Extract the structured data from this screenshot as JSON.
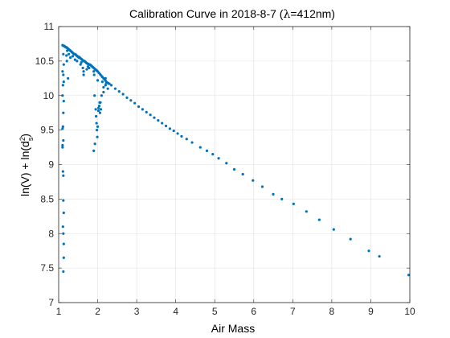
{
  "chart_data": {
    "type": "scatter",
    "title": "Calibration Curve in 2018-8-7 (λ=412nm)",
    "title_parts": {
      "before": "Calibration Curve in 2018-8-7 (",
      "symbol": "λ",
      "after": "=412nm)"
    },
    "xlabel": "Air Mass",
    "ylabel": "ln(V) + ln(d_s^2)",
    "ylabel_parts": {
      "main": "ln(V) + ln(d",
      "superscript": "2",
      "subscript": "s",
      "close": ")"
    },
    "xlim": [
      1,
      10
    ],
    "ylim": [
      7,
      11
    ],
    "xticks": [
      1,
      2,
      3,
      4,
      5,
      6,
      7,
      8,
      9,
      10
    ],
    "yticks": [
      7,
      7.5,
      8,
      8.5,
      9,
      9.5,
      10,
      10.5,
      11
    ],
    "ytick_labels": [
      "7",
      "7.5",
      "8",
      "8.5",
      "9",
      "9.5",
      "10",
      "10.5",
      "11"
    ],
    "grid": true,
    "marker_color": "#0072bd",
    "series": [
      {
        "x": [
          1.1,
          1.12,
          1.14,
          1.16,
          1.18,
          1.2,
          1.22,
          1.24,
          1.26,
          1.28,
          1.3,
          1.32,
          1.34,
          1.36,
          1.38,
          1.4,
          1.42,
          1.44,
          1.46,
          1.48,
          1.5,
          1.52,
          1.54,
          1.56,
          1.58,
          1.6,
          1.62,
          1.64,
          1.66,
          1.68,
          1.7,
          1.72,
          1.74,
          1.76,
          1.78,
          1.8,
          1.82,
          1.84,
          1.86,
          1.88,
          1.9,
          1.92,
          1.94,
          1.96,
          1.98,
          2.0,
          2.03,
          2.06,
          2.09,
          2.12,
          2.15,
          2.18,
          2.21,
          2.24,
          2.27,
          2.3,
          2.35,
          2.45,
          2.55,
          2.65,
          2.75,
          2.85,
          2.95,
          3.05,
          3.15,
          3.25,
          3.35,
          3.45,
          3.55,
          3.65,
          3.75,
          3.85,
          3.95,
          4.05,
          4.15,
          4.28,
          4.42,
          4.63,
          4.8,
          4.95,
          5.1,
          5.3,
          5.5,
          5.72,
          5.98,
          6.22,
          6.5,
          6.72,
          7.02,
          7.35,
          7.68,
          8.05,
          8.48,
          8.95,
          9.22,
          9.97,
          1.1,
          1.11,
          1.12,
          1.13,
          1.13,
          1.12,
          1.11,
          1.1,
          1.12,
          1.1,
          1.1,
          1.11,
          1.12,
          1.12,
          1.13,
          1.11,
          1.12,
          1.13,
          1.13,
          1.12,
          1.1,
          1.12,
          1.13,
          1.2,
          1.24,
          1.21,
          1.22,
          1.26,
          1.3,
          1.36,
          1.42,
          1.47,
          1.52,
          1.56,
          1.62,
          1.58,
          1.64,
          1.64,
          1.72,
          1.75,
          1.78,
          1.9,
          1.91,
          1.92,
          1.95,
          1.96,
          1.97,
          1.98,
          1.9,
          1.93,
          1.99,
          2.0,
          2.06,
          2.12,
          2.15,
          2.2,
          2.22,
          2.26,
          2.02,
          2.05,
          2.1,
          2.0,
          2.07,
          2.02,
          2.04,
          2.08,
          2.15,
          2.2
        ],
        "y": [
          10.73,
          10.72,
          10.72,
          10.71,
          10.7,
          10.7,
          10.69,
          10.68,
          10.67,
          10.66,
          10.65,
          10.64,
          10.63,
          10.62,
          10.61,
          10.6,
          10.6,
          10.59,
          10.58,
          10.57,
          10.56,
          10.56,
          10.55,
          10.54,
          10.53,
          10.52,
          10.51,
          10.5,
          10.5,
          10.49,
          10.48,
          10.47,
          10.46,
          10.46,
          10.45,
          10.45,
          10.44,
          10.43,
          10.42,
          10.41,
          10.4,
          10.39,
          10.38,
          10.37,
          10.36,
          10.35,
          10.33,
          10.31,
          10.29,
          10.27,
          10.25,
          10.23,
          10.21,
          10.19,
          10.18,
          10.17,
          10.15,
          10.1,
          10.06,
          10.02,
          9.97,
          9.93,
          9.89,
          9.84,
          9.8,
          9.76,
          9.72,
          9.68,
          9.64,
          9.6,
          9.56,
          9.52,
          9.49,
          9.45,
          9.41,
          9.37,
          9.32,
          9.25,
          9.2,
          9.15,
          9.09,
          9.02,
          8.93,
          8.86,
          8.77,
          8.68,
          8.57,
          8.5,
          8.43,
          8.32,
          8.2,
          8.06,
          7.92,
          7.75,
          7.67,
          7.4,
          10.35,
          10.15,
          10.6,
          10.2,
          9.92,
          9.75,
          9.55,
          9.52,
          9.35,
          9.28,
          9.25,
          8.9,
          8.84,
          8.48,
          8.3,
          8.1,
          8.0,
          7.85,
          7.65,
          7.45,
          10.0,
          10.3,
          10.45,
          10.58,
          10.25,
          10.5,
          10.65,
          10.6,
          10.55,
          10.57,
          10.52,
          10.5,
          10.55,
          10.45,
          10.4,
          10.48,
          10.35,
          10.3,
          10.38,
          10.42,
          10.4,
          10.35,
          10.3,
          10.0,
          9.8,
          9.7,
          9.6,
          9.5,
          9.2,
          9.3,
          9.4,
          9.55,
          9.75,
          10.2,
          10.05,
          10.25,
          10.18,
          10.1,
          9.82,
          9.9,
          10.0,
          10.22,
          9.9,
          9.78,
          9.85,
          9.8,
          10.12,
          10.15
        ]
      }
    ]
  }
}
